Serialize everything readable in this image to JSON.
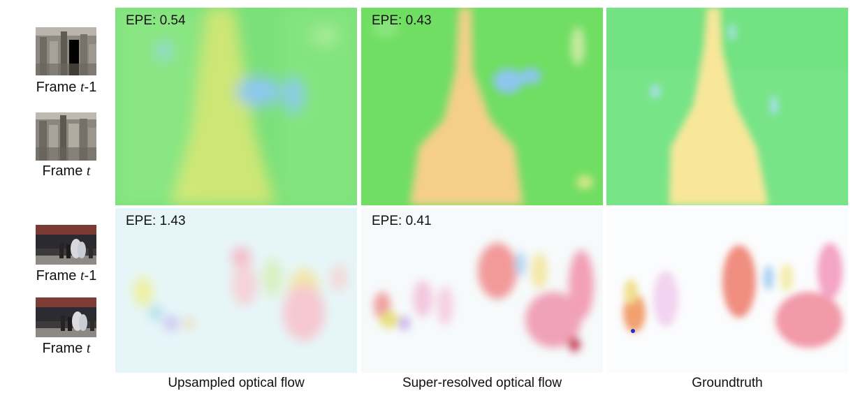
{
  "rows": [
    {
      "frames": [
        {
          "label": "Frame ",
          "var": "t",
          "suffix": "-1"
        },
        {
          "label": "Frame ",
          "var": "t",
          "suffix": ""
        }
      ],
      "epe": [
        "EPE: 0.54",
        "EPE: 0.43",
        ""
      ]
    },
    {
      "frames": [
        {
          "label": "Frame ",
          "var": "t",
          "suffix": "-1"
        },
        {
          "label": "Frame ",
          "var": "t",
          "suffix": ""
        }
      ],
      "epe": [
        "EPE: 1.43",
        "EPE: 0.41",
        ""
      ]
    }
  ],
  "captions": [
    "Upsampled optical flow",
    "Super-resolved optical flow",
    "Groundtruth"
  ],
  "colors": {
    "flow_green": "#5ee05a",
    "flow_yellow": "#f4e28a",
    "flow_pink": "#f08a9a",
    "flow_blue": "#8fd0f0"
  }
}
